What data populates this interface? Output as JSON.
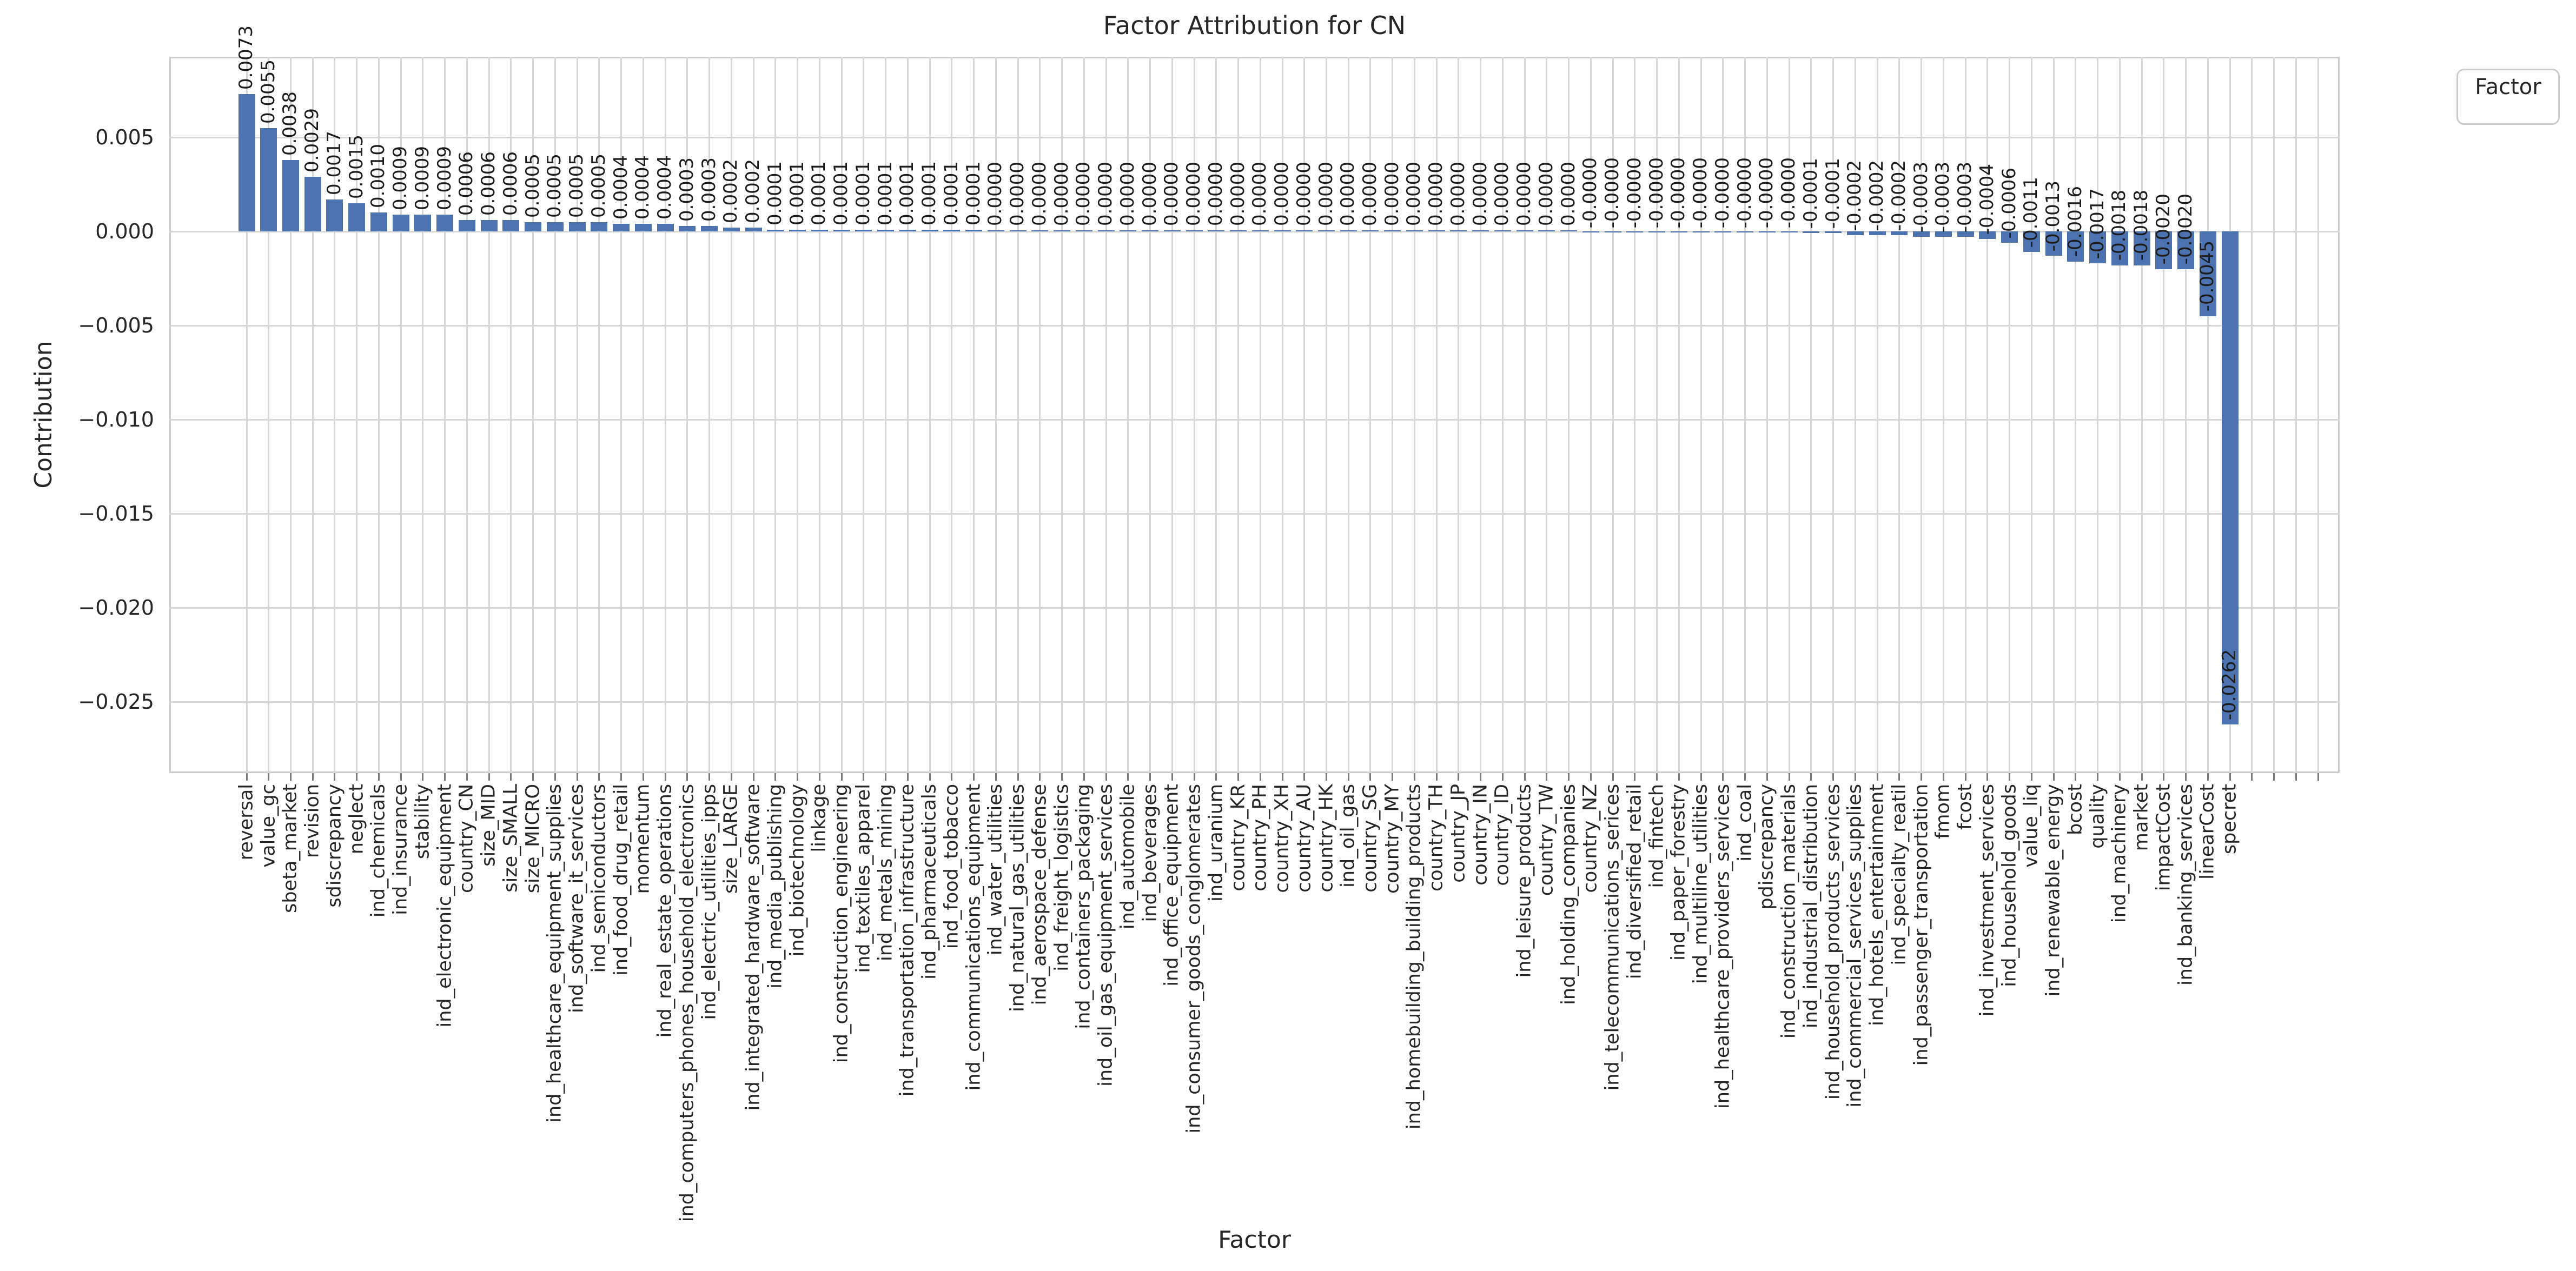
{
  "chart_data": {
    "type": "bar",
    "title": "Factor Attribution for CN",
    "xlabel": "Factor",
    "ylabel": "Contribution",
    "legend": {
      "title": "Factor",
      "position": "upper right, outside axes"
    },
    "grid": true,
    "bar_color": "#4C72B0",
    "ylim": [
      -0.0288,
      0.0093
    ],
    "yticks": [
      "0.005",
      "0.000",
      "−0.005",
      "−0.010",
      "−0.015",
      "−0.020",
      "−0.025"
    ],
    "ytick_values": [
      0.005,
      0.0,
      -0.005,
      -0.01,
      -0.015,
      -0.02,
      -0.025
    ],
    "categories": [
      "reversal",
      "value_gc",
      "sbeta_market",
      "revision",
      "sdiscrepancy",
      "neglect",
      "ind_chemicals",
      "ind_insurance",
      "stability",
      "ind_electronic_equipment",
      "country_CN",
      "size_MID",
      "size_SMALL",
      "size_MICRO",
      "ind_healthcare_equipment_supplies",
      "ind_software_it_services",
      "ind_semiconductors",
      "ind_food_drug_retail",
      "momentum",
      "ind_real_estate_operations",
      "ind_computers_phones_household_electronics",
      "ind_electric_utilities_ipps",
      "size_LARGE",
      "ind_integrated_hardware_software",
      "ind_media_publishing",
      "ind_biotechnology",
      "linkage",
      "ind_construction_engineering",
      "ind_textiles_apparel",
      "ind_metals_mining",
      "ind_transportation_infrastructure",
      "ind_pharmaceuticals",
      "ind_food_tobacco",
      "ind_communications_equipment",
      "ind_water_utilities",
      "ind_natural_gas_utilities",
      "ind_aerospace_defense",
      "ind_freight_logistics",
      "ind_containers_packaging",
      "ind_oil_gas_equipment_services",
      "ind_automobile",
      "ind_beverages",
      "ind_office_equipment",
      "ind_consumer_goods_conglomerates",
      "ind_uranium",
      "country_KR",
      "country_PH",
      "country_XH",
      "country_AU",
      "country_HK",
      "ind_oil_gas",
      "country_SG",
      "country_MY",
      "ind_homebuilding_building_products",
      "country_TH",
      "country_JP",
      "country_IN",
      "country_ID",
      "ind_leisure_products",
      "country_TW",
      "ind_holding_companies",
      "country_NZ",
      "ind_telecommunications_serices",
      "ind_diversified_retail",
      "ind_fintech",
      "ind_paper_forestry",
      "ind_multiline_utilities",
      "ind_healthcare_providers_services",
      "ind_coal",
      "pdiscrepancy",
      "ind_construction_materials",
      "ind_industrial_distribution",
      "ind_household_products_services",
      "ind_commercial_services_supplies",
      "ind_hotels_entertainment",
      "ind_specialty_reatil",
      "ind_passenger_transportation",
      "fmom",
      "fcost",
      "ind_investment_services",
      "ind_household_goods",
      "value_liq",
      "ind_renewable_energy",
      "bcost",
      "quality",
      "ind_machinery",
      "market",
      "impactCost",
      "ind_banking_services",
      "linearCost",
      "specret"
    ],
    "values": [
      0.0073,
      0.0055,
      0.0038,
      0.0029,
      0.0017,
      0.0015,
      0.001,
      0.0009,
      0.0009,
      0.0009,
      0.0006,
      0.0006,
      0.0006,
      0.0005,
      0.0005,
      0.0005,
      0.0005,
      0.0004,
      0.0004,
      0.0004,
      0.0003,
      0.0003,
      0.0002,
      0.0002,
      0.0001,
      0.0001,
      0.0001,
      0.0001,
      0.0001,
      0.0001,
      0.0001,
      0.0001,
      0.0001,
      0.0001,
      0.0,
      0.0,
      0.0,
      0.0,
      0.0,
      0.0,
      0.0,
      0.0,
      0.0,
      0.0,
      0.0,
      0.0,
      0.0,
      0.0,
      0.0,
      0.0,
      0.0,
      0.0,
      0.0,
      0.0,
      0.0,
      0.0,
      0.0,
      0.0,
      0.0,
      0.0,
      0.0,
      -0.0,
      -0.0,
      -0.0,
      -0.0,
      -0.0,
      -0.0,
      -0.0,
      -0.0,
      -0.0,
      -0.0,
      -0.0001,
      -0.0001,
      -0.0002,
      -0.0002,
      -0.0002,
      -0.0003,
      -0.0003,
      -0.0003,
      -0.0004,
      -0.0006,
      -0.0011,
      -0.0013,
      -0.0016,
      -0.0017,
      -0.0018,
      -0.0018,
      -0.002,
      -0.002,
      -0.0045,
      -0.0262
    ],
    "value_labels": [
      "0.0073",
      "0.0055",
      "0.0038",
      "0.0029",
      "0.0017",
      "0.0015",
      "0.0010",
      "0.0009",
      "0.0009",
      "0.0009",
      "0.0006",
      "0.0006",
      "0.0006",
      "0.0005",
      "0.0005",
      "0.0005",
      "0.0005",
      "0.0004",
      "0.0004",
      "0.0004",
      "0.0003",
      "0.0003",
      "0.0002",
      "0.0002",
      "0.0001",
      "0.0001",
      "0.0001",
      "0.0001",
      "0.0001",
      "0.0001",
      "0.0001",
      "0.0001",
      "0.0001",
      "0.0001",
      "0.0000",
      "0.0000",
      "0.0000",
      "0.0000",
      "0.0000",
      "0.0000",
      "0.0000",
      "0.0000",
      "0.0000",
      "0.0000",
      "0.0000",
      "0.0000",
      "0.0000",
      "0.0000",
      "0.0000",
      "0.0000",
      "0.0000",
      "0.0000",
      "0.0000",
      "0.0000",
      "0.0000",
      "0.0000",
      "0.0000",
      "0.0000",
      "0.0000",
      "0.0000",
      "0.0000",
      "-0.0000",
      "-0.0000",
      "-0.0000",
      "-0.0000",
      "-0.0000",
      "-0.0000",
      "-0.0000",
      "-0.0000",
      "-0.0000",
      "-0.0000",
      "-0.0001",
      "-0.0001",
      "-0.0002",
      "-0.0002",
      "-0.0002",
      "-0.0003",
      "-0.0003",
      "-0.0003",
      "-0.0004",
      "-0.0006",
      "-0.0011",
      "-0.0013",
      "-0.0016",
      "-0.0017",
      "-0.0018",
      "-0.0018",
      "-0.0020",
      "-0.0020",
      "-0.0045",
      "-0.0262"
    ]
  }
}
